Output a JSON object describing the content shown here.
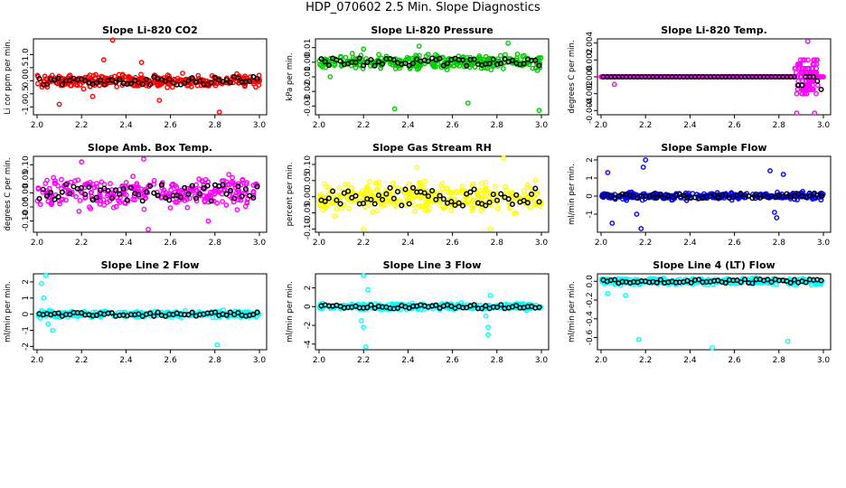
{
  "figure_title": "HDP_070602  2.5 Min. Slope Diagnostics",
  "chart_data": [
    {
      "type": "scatter",
      "title": "Slope Li-820 CO2",
      "ylabel": "Li cor ppm per min.",
      "xlim": [
        2.0,
        3.0
      ],
      "ylim": [
        -1.3,
        1.6
      ],
      "xticks": [
        "2.0",
        "2.2",
        "2.4",
        "2.6",
        "2.8",
        "3.0"
      ],
      "yticks": [
        -1.0,
        -0.5,
        0.0,
        0.5,
        1.0
      ],
      "ytick_labels": [
        "-1.0",
        "-0.5",
        "0.0",
        "0.5",
        "1.0"
      ],
      "color": "#ff0000",
      "spread": 0.22,
      "center": 0.0,
      "outliers": [
        [
          2.1,
          -0.9
        ],
        [
          2.34,
          1.55
        ],
        [
          2.55,
          -0.75
        ],
        [
          2.82,
          -1.2
        ],
        [
          2.3,
          0.8
        ],
        [
          2.47,
          0.7
        ],
        [
          2.25,
          -0.6
        ]
      ]
    },
    {
      "type": "scatter",
      "title": "Slope Li-820 Pressure",
      "ylabel": "kPa per min.",
      "xlim": [
        2.0,
        3.0
      ],
      "ylim": [
        -0.036,
        0.016
      ],
      "xticks": [
        "2.0",
        "2.2",
        "2.4",
        "2.6",
        "2.8",
        "3.0"
      ],
      "yticks": [
        -0.03,
        -0.02,
        -0.01,
        0.0,
        0.01
      ],
      "ytick_labels": [
        "-0.03",
        "-0.02",
        "-0.01",
        "0.00",
        "0.01"
      ],
      "color": "#00cc00",
      "spread": 0.004,
      "center": 0.0,
      "outliers": [
        [
          2.34,
          -0.032
        ],
        [
          2.67,
          -0.028
        ],
        [
          2.85,
          0.013
        ],
        [
          2.99,
          -0.033
        ],
        [
          2.05,
          -0.01
        ],
        [
          2.2,
          0.009
        ],
        [
          2.45,
          0.011
        ]
      ]
    },
    {
      "type": "scatter",
      "title": "Slope Li-820 Temp.",
      "ylabel": "degrees C per min.",
      "xlim": [
        2.0,
        3.0
      ],
      "ylim": [
        -0.0045,
        0.0045
      ],
      "xticks": [
        "2.0",
        "2.2",
        "2.4",
        "2.6",
        "2.8",
        "3.0"
      ],
      "yticks": [
        -0.004,
        -0.002,
        0.0,
        0.002,
        0.004
      ],
      "ytick_labels": [
        "-0.004",
        "-0.002",
        "0.000",
        "0.002",
        "0.004"
      ],
      "color": "#ff00ff",
      "spread": 0.0,
      "center": 0.0,
      "outliers": [
        [
          2.06,
          -0.0009
        ],
        [
          2.93,
          0.0042
        ],
        [
          2.88,
          -0.0043
        ],
        [
          2.96,
          -0.0043
        ]
      ]
    },
    {
      "type": "scatter",
      "title": "Slope Amb. Box Temp.",
      "ylabel": "degrees C per min.",
      "xlim": [
        2.0,
        3.0
      ],
      "ylim": [
        -0.14,
        0.13
      ],
      "xticks": [
        "2.0",
        "2.2",
        "2.4",
        "2.6",
        "2.8",
        "3.0"
      ],
      "yticks": [
        -0.1,
        -0.05,
        0.0,
        0.05,
        0.1
      ],
      "ytick_labels": [
        "-0.10",
        "-0.05",
        "0.00",
        "0.05",
        "0.10"
      ],
      "color": "#ff00ff",
      "spread": 0.045,
      "center": 0.0,
      "outliers": [
        [
          2.48,
          0.12
        ],
        [
          2.5,
          -0.13
        ],
        [
          2.9,
          -0.06
        ],
        [
          2.2,
          0.11
        ],
        [
          2.77,
          -0.1
        ]
      ]
    },
    {
      "type": "scatter",
      "title": "Slope Gas Stream RH",
      "ylabel": "percent per min.",
      "xlim": [
        2.0,
        3.0
      ],
      "ylim": [
        -0.11,
        0.125
      ],
      "xticks": [
        "2.0",
        "2.2",
        "2.4",
        "2.6",
        "2.8",
        "3.0"
      ],
      "yticks": [
        -0.1,
        -0.05,
        0.0,
        0.05,
        0.1
      ],
      "ytick_labels": [
        "-0.10",
        "-0.05",
        "0.00",
        "0.05",
        "0.10"
      ],
      "color": "#ffff00",
      "spread": 0.04,
      "center": 0.0,
      "outliers": [
        [
          2.83,
          0.12
        ],
        [
          2.77,
          -0.1
        ],
        [
          2.07,
          -0.06
        ],
        [
          2.2,
          -0.1
        ],
        [
          2.44,
          0.09
        ]
      ]
    },
    {
      "type": "scatter",
      "title": "Slope Sample Flow",
      "ylabel": "ml/min per min.",
      "xlim": [
        2.0,
        3.0
      ],
      "ylim": [
        -2.0,
        2.2
      ],
      "xticks": [
        "2.0",
        "2.2",
        "2.4",
        "2.6",
        "2.8",
        "3.0"
      ],
      "yticks": [
        -1.0,
        0.0,
        1.0,
        2.0
      ],
      "ytick_labels": [
        "-1",
        "0",
        "1",
        "2"
      ],
      "color": "#0000ff",
      "spread": 0.18,
      "center": 0.0,
      "outliers": [
        [
          2.2,
          2.0
        ],
        [
          2.18,
          -1.8
        ],
        [
          2.03,
          1.3
        ],
        [
          2.05,
          -1.5
        ],
        [
          2.19,
          1.6
        ],
        [
          2.76,
          1.4
        ],
        [
          2.79,
          -1.2
        ],
        [
          2.16,
          -1.0
        ],
        [
          2.82,
          1.2
        ],
        [
          2.78,
          -0.9
        ]
      ]
    },
    {
      "type": "scatter",
      "title": "Slope Line 2 Flow",
      "ylabel": "ml/min per min.",
      "xlim": [
        2.0,
        3.0
      ],
      "ylim": [
        -2.2,
        2.5
      ],
      "xticks": [
        "2.0",
        "2.2",
        "2.4",
        "2.6",
        "2.8",
        "3.0"
      ],
      "yticks": [
        -2.0,
        -1.0,
        0.0,
        1.0,
        2.0
      ],
      "ytick_labels": [
        "-2",
        "-1",
        "0",
        "1",
        "2"
      ],
      "color": "#00ffff",
      "spread": 0.18,
      "center": 0.0,
      "outliers": [
        [
          2.04,
          2.4
        ],
        [
          2.02,
          1.9
        ],
        [
          2.07,
          -1.0
        ],
        [
          2.81,
          -1.9
        ],
        [
          2.05,
          -0.6
        ],
        [
          2.03,
          1.0
        ]
      ]
    },
    {
      "type": "scatter",
      "title": "Slope Line 3 Flow",
      "ylabel": "ml/min per min.",
      "xlim": [
        2.0,
        3.0
      ],
      "ylim": [
        -4.6,
        3.5
      ],
      "xticks": [
        "2.0",
        "2.2",
        "2.4",
        "2.6",
        "2.8",
        "3.0"
      ],
      "yticks": [
        -4.0,
        -2.0,
        0.0,
        2.0
      ],
      "ytick_labels": [
        "-4",
        "-2",
        "0",
        "2"
      ],
      "color": "#00ffff",
      "spread": 0.3,
      "center": 0.0,
      "outliers": [
        [
          2.2,
          3.3
        ],
        [
          2.21,
          -4.3
        ],
        [
          2.19,
          -1.5
        ],
        [
          2.22,
          1.8
        ],
        [
          2.76,
          -3.0
        ],
        [
          2.76,
          -2.2
        ],
        [
          2.77,
          1.2
        ],
        [
          2.75,
          -1.0
        ],
        [
          2.2,
          -2.2
        ]
      ]
    },
    {
      "type": "scatter",
      "title": "Slope Line 4 (LT) Flow",
      "ylabel": "ml/min per min.",
      "xlim": [
        2.0,
        3.0
      ],
      "ylim": [
        -0.73,
        0.08
      ],
      "xticks": [
        "2.0",
        "2.2",
        "2.4",
        "2.6",
        "2.8",
        "3.0"
      ],
      "yticks": [
        -0.6,
        -0.4,
        -0.2,
        0.0
      ],
      "ytick_labels": [
        "-0.6",
        "-0.4",
        "-0.2",
        "0.0"
      ],
      "color": "#00ffff",
      "spread": 0.03,
      "center": 0.0,
      "outliers": [
        [
          2.17,
          -0.62
        ],
        [
          2.5,
          -0.71
        ],
        [
          2.84,
          -0.64
        ],
        [
          2.03,
          -0.13
        ],
        [
          2.11,
          -0.15
        ]
      ]
    }
  ]
}
